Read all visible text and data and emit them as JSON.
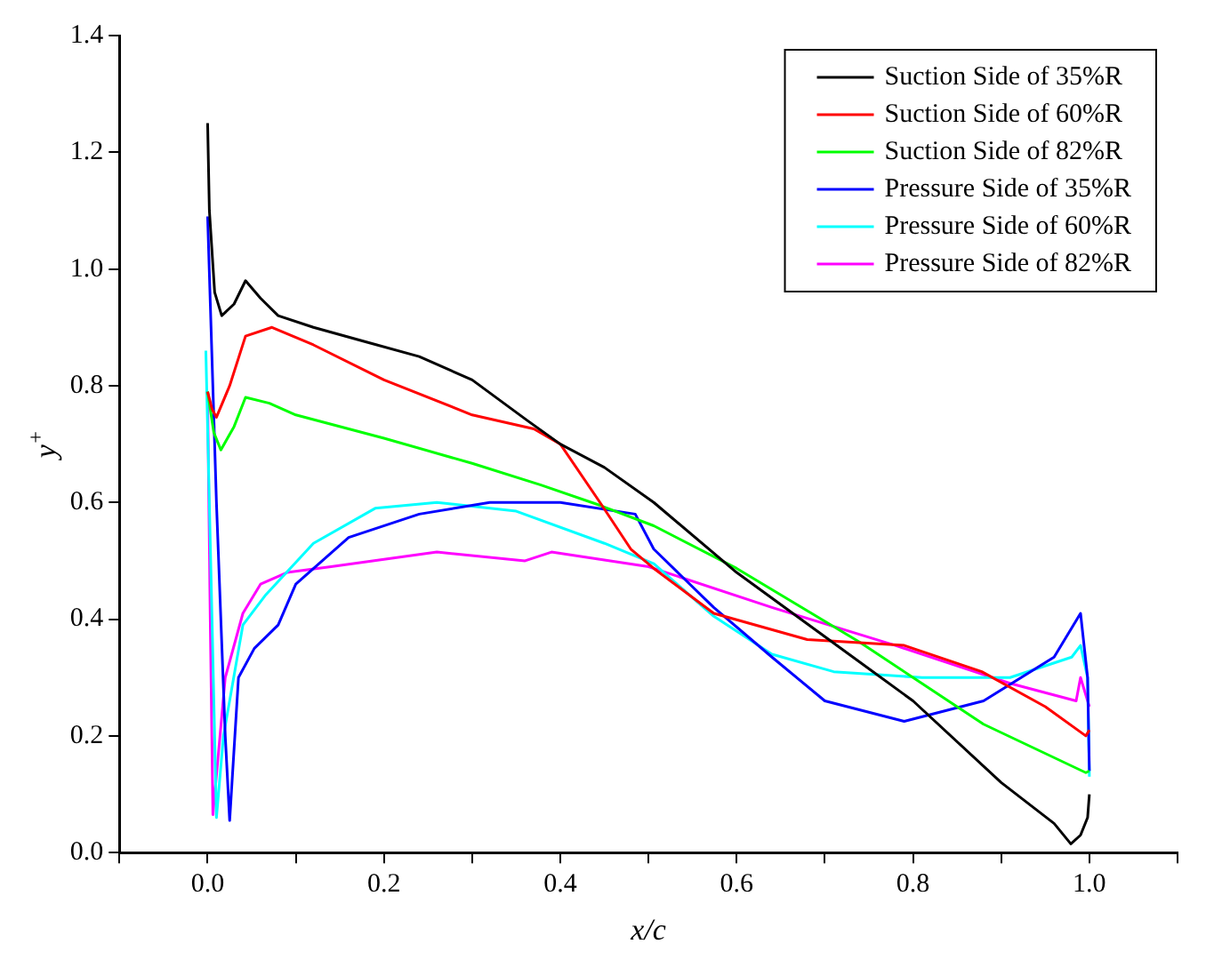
{
  "chart_data": {
    "type": "line",
    "xlabel": "x/c",
    "ylabel": "y$^{+}$",
    "xlim": [
      -0.1,
      1.1
    ],
    "ylim": [
      0,
      1.4
    ],
    "xticks": [
      {
        "value": -0.1,
        "label": null
      },
      {
        "value": 0,
        "label": "0.0"
      },
      {
        "value": 0.1,
        "label": null
      },
      0.2,
      {
        "value": 0.3,
        "label": null
      },
      0.4,
      {
        "value": 0.5,
        "label": null
      },
      0.6,
      {
        "value": 0.7,
        "label": null
      },
      0.8,
      {
        "value": 0.9,
        "label": null
      },
      {
        "value": 1,
        "label": "1.0"
      },
      {
        "value": 1.1,
        "label": null
      }
    ],
    "yticks": [
      {
        "value": 0,
        "label": "0.0"
      },
      0.2,
      0.4,
      0.6,
      0.8,
      {
        "value": 1,
        "label": "1.0"
      },
      1.2,
      1.4
    ],
    "grid": false,
    "legend": "top right",
    "marker": "none",
    "line_style": "solid",
    "series": [
      {
        "name": "Suction Side of 35%R",
        "color": "#000000",
        "x": [
          0.0,
          0.002,
          0.008,
          0.016,
          0.03,
          0.043,
          0.06,
          0.08,
          0.12,
          0.18,
          0.24,
          0.3,
          0.363,
          0.4,
          0.45,
          0.506,
          0.6,
          0.7,
          0.8,
          0.9,
          0.96,
          0.979,
          0.99,
          0.998,
          1.0
        ],
        "values": [
          1.25,
          1.1,
          0.96,
          0.92,
          0.94,
          0.98,
          0.95,
          0.92,
          0.9,
          0.875,
          0.85,
          0.81,
          0.74,
          0.7,
          0.66,
          0.6,
          0.48,
          0.37,
          0.26,
          0.12,
          0.05,
          0.015,
          0.03,
          0.06,
          0.1
        ]
      },
      {
        "name": "Suction Side of 60%R",
        "color": "#ff0000",
        "x": [
          0.0,
          0.005,
          0.01,
          0.025,
          0.043,
          0.073,
          0.12,
          0.2,
          0.3,
          0.37,
          0.4,
          0.445,
          0.48,
          0.506,
          0.574,
          0.68,
          0.79,
          0.878,
          0.95,
          0.996,
          1.0
        ],
        "values": [
          0.79,
          0.76,
          0.746,
          0.8,
          0.885,
          0.9,
          0.87,
          0.81,
          0.75,
          0.726,
          0.7,
          0.6,
          0.52,
          0.487,
          0.41,
          0.365,
          0.355,
          0.31,
          0.25,
          0.2,
          0.21
        ]
      },
      {
        "name": "Suction Side of 82%R",
        "color": "#00ff00",
        "x": [
          0.0,
          0.007,
          0.015,
          0.03,
          0.043,
          0.07,
          0.1,
          0.2,
          0.3,
          0.378,
          0.445,
          0.506,
          0.6,
          0.74,
          0.88,
          0.996,
          1.0
        ],
        "values": [
          0.79,
          0.72,
          0.69,
          0.73,
          0.78,
          0.77,
          0.75,
          0.71,
          0.667,
          0.63,
          0.595,
          0.56,
          0.487,
          0.36,
          0.22,
          0.137,
          0.14
        ]
      },
      {
        "name": "Pressure Side of 35%R",
        "color": "#0000ff",
        "x": [
          0.0,
          0.01,
          0.02,
          0.025,
          0.035,
          0.053,
          0.08,
          0.1,
          0.16,
          0.24,
          0.32,
          0.4,
          0.485,
          0.506,
          0.574,
          0.64,
          0.7,
          0.79,
          0.88,
          0.96,
          0.99,
          0.998,
          1.0
        ],
        "values": [
          1.09,
          0.6,
          0.2,
          0.055,
          0.3,
          0.35,
          0.39,
          0.46,
          0.54,
          0.58,
          0.6,
          0.6,
          0.58,
          0.52,
          0.42,
          0.335,
          0.26,
          0.225,
          0.26,
          0.335,
          0.41,
          0.3,
          0.14
        ]
      },
      {
        "name": "Pressure Side of 60%R",
        "color": "#00ffff",
        "x": [
          -0.002,
          0.005,
          0.01,
          0.018,
          0.04,
          0.065,
          0.12,
          0.19,
          0.26,
          0.35,
          0.45,
          0.506,
          0.574,
          0.64,
          0.71,
          0.81,
          0.91,
          0.98,
          0.99,
          0.998,
          1.0
        ],
        "values": [
          0.86,
          0.4,
          0.06,
          0.2,
          0.39,
          0.44,
          0.53,
          0.59,
          0.6,
          0.585,
          0.53,
          0.495,
          0.405,
          0.34,
          0.31,
          0.3,
          0.3,
          0.335,
          0.355,
          0.3,
          0.13
        ]
      },
      {
        "name": "Pressure Side of 82%R",
        "color": "#ff00ff",
        "x": [
          0.0,
          0.003,
          0.006,
          0.02,
          0.04,
          0.06,
          0.09,
          0.14,
          0.26,
          0.36,
          0.39,
          0.5,
          0.64,
          0.78,
          0.91,
          0.985,
          0.99,
          1.0
        ],
        "values": [
          0.78,
          0.4,
          0.065,
          0.3,
          0.41,
          0.46,
          0.48,
          0.49,
          0.515,
          0.5,
          0.515,
          0.49,
          0.42,
          0.355,
          0.29,
          0.26,
          0.3,
          0.25
        ]
      }
    ]
  }
}
